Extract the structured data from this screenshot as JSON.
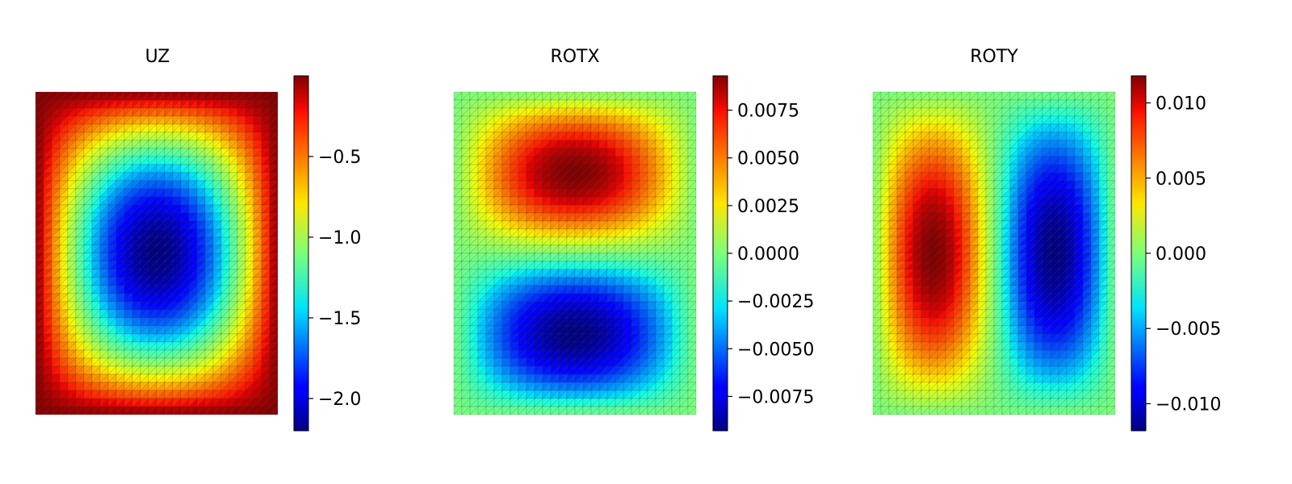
{
  "figure": {
    "colormap": "jet",
    "mesh_line_color": "#333333"
  },
  "chart_data": [
    {
      "type": "heatmap",
      "title": "UZ",
      "mesh": {
        "nx": 30,
        "ny": 40,
        "triangulated": true
      },
      "field": {
        "kind": "bowl",
        "min": -2.2,
        "max": 0.0
      },
      "colorbar": {
        "vmin": -2.2,
        "vmax": 0.0,
        "ticks": [
          -0.5,
          -1.0,
          -1.5,
          -2.0
        ],
        "tick_labels": [
          "−0.5",
          "−1.0",
          "−1.5",
          "−2.0"
        ]
      }
    },
    {
      "type": "heatmap",
      "title": "ROTX",
      "mesh": {
        "nx": 30,
        "ny": 40,
        "triangulated": true
      },
      "field": {
        "kind": "rotx",
        "min": -0.0093,
        "max": 0.0093
      },
      "colorbar": {
        "vmin": -0.0093,
        "vmax": 0.0093,
        "ticks": [
          0.0075,
          0.005,
          0.0025,
          0.0,
          -0.0025,
          -0.005,
          -0.0075
        ],
        "tick_labels": [
          "0.0075",
          "0.0050",
          "0.0025",
          "0.0000",
          "−0.0025",
          "−0.0050",
          "−0.0075"
        ]
      }
    },
    {
      "type": "heatmap",
      "title": "ROTY",
      "mesh": {
        "nx": 30,
        "ny": 40,
        "triangulated": true
      },
      "field": {
        "kind": "roty",
        "min": -0.0118,
        "max": 0.0118
      },
      "colorbar": {
        "vmin": -0.0118,
        "vmax": 0.0118,
        "ticks": [
          0.01,
          0.005,
          0.0,
          -0.005,
          -0.01
        ],
        "tick_labels": [
          "0.010",
          "0.005",
          "0.000",
          "−0.005",
          "−0.010"
        ]
      }
    }
  ]
}
